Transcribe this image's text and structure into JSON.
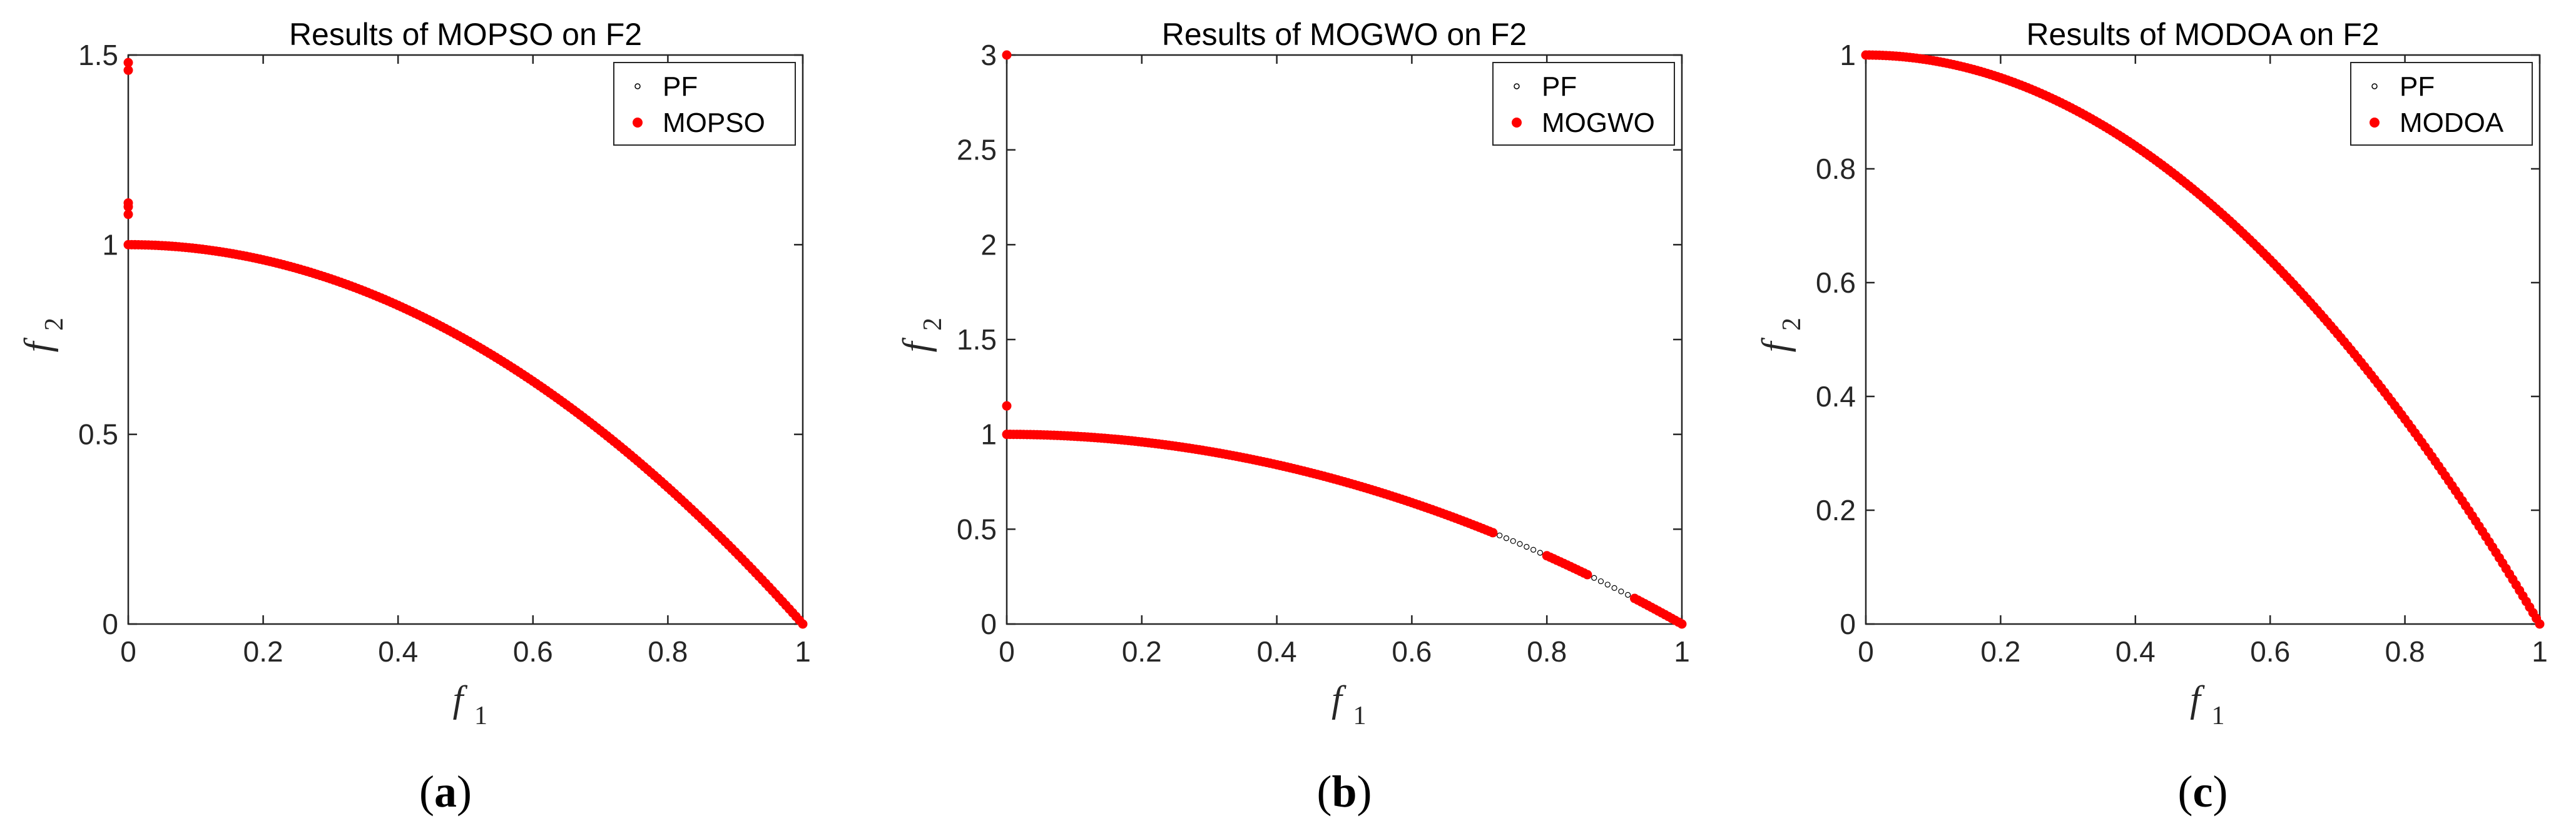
{
  "chart_data": [
    {
      "type": "scatter",
      "title": "Results of MOPSO on F2",
      "xlabel": "f",
      "xlabel_sub": "1",
      "ylabel": "f",
      "ylabel_sub": "2",
      "xlim": [
        0,
        1
      ],
      "ylim": [
        0,
        1.5
      ],
      "xticks": [
        "0",
        "0.2",
        "0.4",
        "0.6",
        "0.8",
        "1"
      ],
      "xtick_values": [
        0,
        0.2,
        0.4,
        0.6,
        0.8,
        1
      ],
      "yticks": [
        "0",
        "0.5",
        "1",
        "1.5"
      ],
      "ytick_values": [
        0,
        0.5,
        1,
        1.5
      ],
      "legend": [
        "PF",
        "MOPSO"
      ],
      "legend_position": "top-right",
      "caption_letter": "a",
      "pf_color": "#000000",
      "series_color": "#ff0000",
      "pareto_front": "f2 = 1 - f1^2",
      "extra_points": [
        [
          0,
          1.46
        ],
        [
          0,
          1.48
        ],
        [
          0,
          1.08
        ],
        [
          0,
          1.1
        ],
        [
          0,
          1.11
        ]
      ]
    },
    {
      "type": "scatter",
      "title": "Results of MOGWO on F2",
      "xlabel": "f",
      "xlabel_sub": "1",
      "ylabel": "f",
      "ylabel_sub": "2",
      "xlim": [
        0,
        1
      ],
      "ylim": [
        0,
        3
      ],
      "xticks": [
        "0",
        "0.2",
        "0.4",
        "0.6",
        "0.8",
        "1"
      ],
      "xtick_values": [
        0,
        0.2,
        0.4,
        0.6,
        0.8,
        1
      ],
      "yticks": [
        "0",
        "0.5",
        "1",
        "1.5",
        "2",
        "2.5",
        "3"
      ],
      "ytick_values": [
        0,
        0.5,
        1,
        1.5,
        2,
        2.5,
        3
      ],
      "legend": [
        "PF",
        "MOGWO"
      ],
      "legend_position": "top-right",
      "caption_letter": "b",
      "pf_color": "#000000",
      "series_color": "#ff0000",
      "pareto_front": "f2 = 1 - f1^2",
      "extra_points": [
        [
          0,
          3.0
        ],
        [
          0,
          1.15
        ]
      ]
    },
    {
      "type": "scatter",
      "title": "Results of MODOA on F2",
      "xlabel": "f",
      "xlabel_sub": "1",
      "ylabel": "f",
      "ylabel_sub": "2",
      "xlim": [
        0,
        1
      ],
      "ylim": [
        0,
        1
      ],
      "xticks": [
        "0",
        "0.2",
        "0.4",
        "0.6",
        "0.8",
        "1"
      ],
      "xtick_values": [
        0,
        0.2,
        0.4,
        0.6,
        0.8,
        1
      ],
      "yticks": [
        "0",
        "0.2",
        "0.4",
        "0.6",
        "0.8",
        "1"
      ],
      "ytick_values": [
        0,
        0.2,
        0.4,
        0.6,
        0.8,
        1
      ],
      "legend": [
        "PF",
        "MODOA"
      ],
      "legend_position": "top-right",
      "caption_letter": "c",
      "pf_color": "#000000",
      "series_color": "#ff0000",
      "pareto_front": "f2 = 1 - f1^2",
      "extra_points": []
    }
  ],
  "captions": {
    "open": "(",
    "close": ")"
  }
}
